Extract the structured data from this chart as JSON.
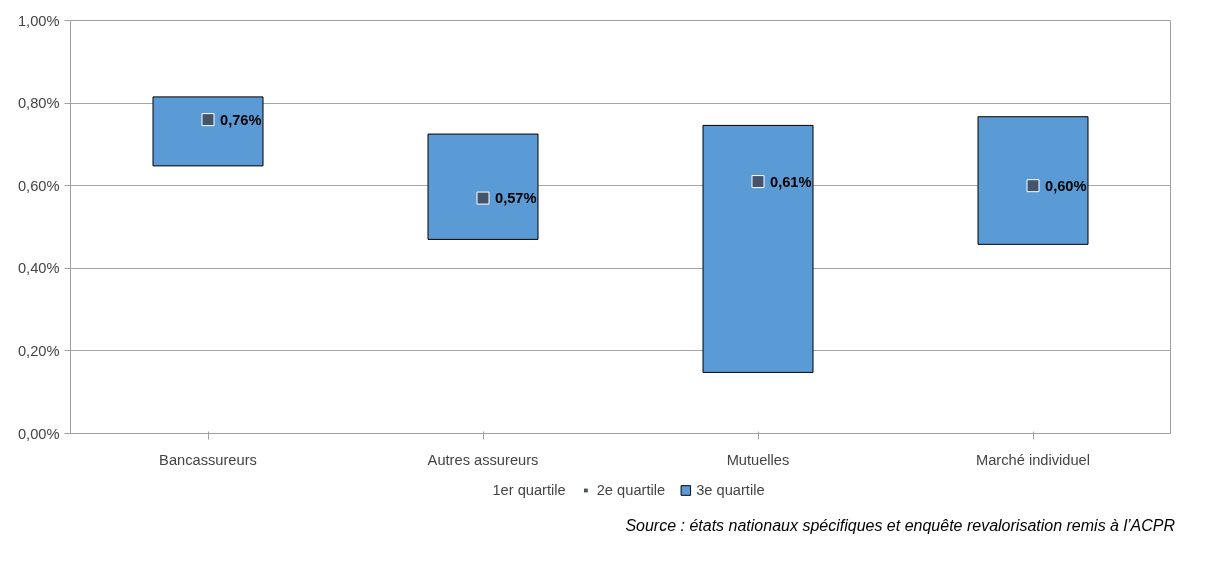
{
  "chart_data": {
    "type": "bar",
    "categories": [
      "Bancassureurs",
      "Autres assureurs",
      "Mutuelles",
      "Marché individuel"
    ],
    "series": [
      {
        "name": "2e quartile",
        "type": "scatter",
        "marker": "square",
        "color": "#44546a",
        "values": [
          0.76,
          0.57,
          0.61,
          0.6
        ],
        "value_labels": [
          "0,76%",
          "0,57%",
          "0,61%",
          "0,60%"
        ]
      },
      {
        "name": "3e quartile",
        "color": "#5b9bd5",
        "base": [
          0.648,
          0.47,
          0.148,
          0.458
        ],
        "values": [
          0.167,
          0.255,
          0.598,
          0.309
        ]
      }
    ],
    "ylim": [
      0,
      1
    ],
    "yticks": [
      {
        "value": 0,
        "label": "0,00%"
      },
      {
        "value": 0.2,
        "label": "0,20%"
      },
      {
        "value": 0.4,
        "label": "0,40%"
      },
      {
        "value": 0.6,
        "label": "0,60%"
      },
      {
        "value": 0.8,
        "label": "0,80%"
      },
      {
        "value": 1,
        "label": "1,00%"
      }
    ],
    "grid": "y",
    "legend": "bottom",
    "annotations": [
      "1er quartile",
      "Source : états nationaux spécifiques et enquête revalorisation remis à l’ACPR"
    ]
  }
}
